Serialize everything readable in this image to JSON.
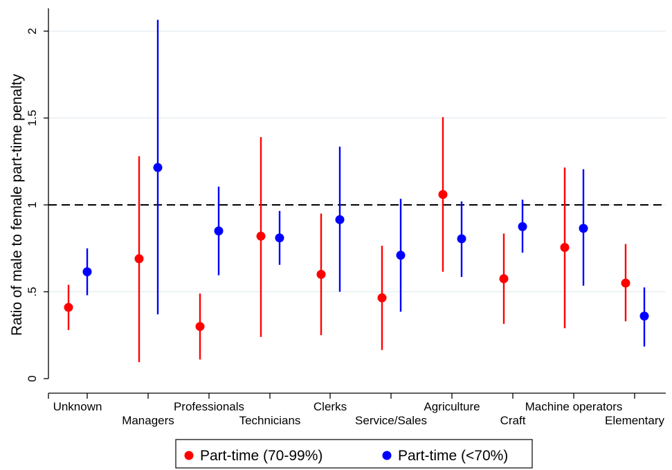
{
  "chart_data": {
    "type": "scatter",
    "ylabel": "Ratio of male to female part-time penalty",
    "xlabel": "",
    "ylim": [
      0,
      2
    ],
    "yticks": [
      0,
      0.5,
      1,
      1.5,
      2
    ],
    "ytick_labels": [
      "0",
      ".5",
      "1",
      "1.5",
      "2"
    ],
    "reference_line": 1,
    "grid": true,
    "categories": [
      "Unknown",
      "Managers",
      "Professionals",
      "Technicians",
      "Clerks",
      "Service/Sales",
      "Agriculture",
      "Craft",
      "Machine operators",
      "Elementary"
    ],
    "series": [
      {
        "name": "Part-time (70-99%)",
        "color": "#ff0000",
        "estimates": [
          0.41,
          0.69,
          0.3,
          0.82,
          0.6,
          0.465,
          1.06,
          0.575,
          0.755,
          0.55
        ],
        "ci_low": [
          0.28,
          0.095,
          0.11,
          0.24,
          0.25,
          0.165,
          0.615,
          0.315,
          0.29,
          0.33
        ],
        "ci_high": [
          0.54,
          1.28,
          0.49,
          1.39,
          0.95,
          0.765,
          1.505,
          0.835,
          1.215,
          0.775
        ]
      },
      {
        "name": "Part-time (<70%)",
        "color": "#0000ff",
        "estimates": [
          0.615,
          1.215,
          0.85,
          0.81,
          0.915,
          0.71,
          0.805,
          0.875,
          0.865,
          0.36
        ],
        "ci_low": [
          0.48,
          0.37,
          0.595,
          0.655,
          0.5,
          0.385,
          0.585,
          0.725,
          0.535,
          0.185
        ],
        "ci_high": [
          0.75,
          2.065,
          1.105,
          0.965,
          1.335,
          1.035,
          1.02,
          1.03,
          1.205,
          0.525
        ]
      }
    ],
    "legend_position": "bottom"
  }
}
